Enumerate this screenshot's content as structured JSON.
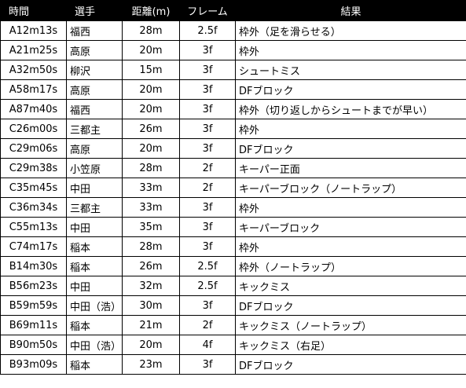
{
  "headers": {
    "time": "時間",
    "player": "選手",
    "distance": "距離(m)",
    "frame": "フレーム",
    "result": "結果"
  },
  "rows": [
    {
      "time": "A12m13s",
      "player": "福西",
      "distance": "28m",
      "frame": "2.5f",
      "result": "枠外（足を滑らせる）"
    },
    {
      "time": "A21m25s",
      "player": "高原",
      "distance": "20m",
      "frame": "3f",
      "result": "枠外"
    },
    {
      "time": "A32m50s",
      "player": "柳沢",
      "distance": "15m",
      "frame": "3f",
      "result": "シュートミス"
    },
    {
      "time": "A58m17s",
      "player": "高原",
      "distance": "20m",
      "frame": "3f",
      "result": "DFブロック"
    },
    {
      "time": "A87m40s",
      "player": "福西",
      "distance": "20m",
      "frame": "3f",
      "result": "枠外（切り返しからシュートまでが早い）"
    },
    {
      "time": "C26m00s",
      "player": "三都主",
      "distance": "26m",
      "frame": "3f",
      "result": "枠外"
    },
    {
      "time": "C29m06s",
      "player": "高原",
      "distance": "20m",
      "frame": "3f",
      "result": "DFブロック"
    },
    {
      "time": "C29m38s",
      "player": "小笠原",
      "distance": "28m",
      "frame": "2f",
      "result": "キーパー正面"
    },
    {
      "time": "C35m45s",
      "player": "中田",
      "distance": "33m",
      "frame": "2f",
      "result": "キーパーブロック（ノートラップ）"
    },
    {
      "time": "C36m34s",
      "player": "三都主",
      "distance": "33m",
      "frame": "3f",
      "result": "枠外"
    },
    {
      "time": "C55m13s",
      "player": "中田",
      "distance": "35m",
      "frame": "3f",
      "result": "キーパーブロック"
    },
    {
      "time": "C74m17s",
      "player": "稲本",
      "distance": "28m",
      "frame": "3f",
      "result": "枠外"
    },
    {
      "time": "B14m30s",
      "player": "稲本",
      "distance": "26m",
      "frame": "2.5f",
      "result": "枠外（ノートラップ）"
    },
    {
      "time": "B56m23s",
      "player": "中田",
      "distance": "32m",
      "frame": "2.5f",
      "result": "キックミス"
    },
    {
      "time": "B59m59s",
      "player": "中田（浩）",
      "distance": "30m",
      "frame": "3f",
      "result": "DFブロック"
    },
    {
      "time": "B69m11s",
      "player": "稲本",
      "distance": "21m",
      "frame": "2f",
      "result": "キックミス（ノートラップ）"
    },
    {
      "time": "B90m50s",
      "player": "中田（浩）",
      "distance": "20m",
      "frame": "4f",
      "result": "キックミス（右足）"
    },
    {
      "time": "B93m09s",
      "player": "稲本",
      "distance": "23m",
      "frame": "3f",
      "result": "DFブロック"
    }
  ]
}
